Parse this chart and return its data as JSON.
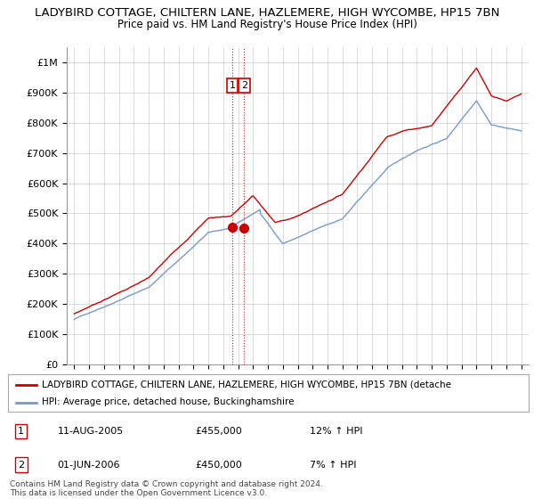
{
  "title1": "LADYBIRD COTTAGE, CHILTERN LANE, HAZLEMERE, HIGH WYCOMBE, HP15 7BN",
  "title2": "Price paid vs. HM Land Registry's House Price Index (HPI)",
  "ylabel_ticks": [
    "£0",
    "£100K",
    "£200K",
    "£300K",
    "£400K",
    "£500K",
    "£600K",
    "£700K",
    "£800K",
    "£900K",
    "£1M"
  ],
  "ylim": [
    0,
    1050000
  ],
  "xlim_start": 1994.5,
  "xlim_end": 2025.5,
  "sale1_x": 2005.6,
  "sale1_y": 455000,
  "sale2_x": 2006.4,
  "sale2_y": 450000,
  "sale1_label": "1",
  "sale2_label": "2",
  "dashed_x1": 2005.6,
  "dashed_x2": 2006.4,
  "red_line_color": "#cc0000",
  "blue_line_color": "#7799cc",
  "dot_color": "#cc0000",
  "dashed_color": "#cc0000",
  "legend_red_label": "LADYBIRD COTTAGE, CHILTERN LANE, HAZLEMERE, HIGH WYCOMBE, HP15 7BN (detache",
  "legend_blue_label": "HPI: Average price, detached house, Buckinghamshire",
  "table_rows": [
    {
      "num": "1",
      "date": "11-AUG-2005",
      "price": "£455,000",
      "hpi": "12% ↑ HPI"
    },
    {
      "num": "2",
      "date": "01-JUN-2006",
      "price": "£450,000",
      "hpi": "7% ↑ HPI"
    }
  ],
  "footnote": "Contains HM Land Registry data © Crown copyright and database right 2024.\nThis data is licensed under the Open Government Licence v3.0.",
  "background_color": "#ffffff",
  "grid_color": "#cccccc",
  "title_fontsize": 9.5,
  "tick_fontsize": 8
}
